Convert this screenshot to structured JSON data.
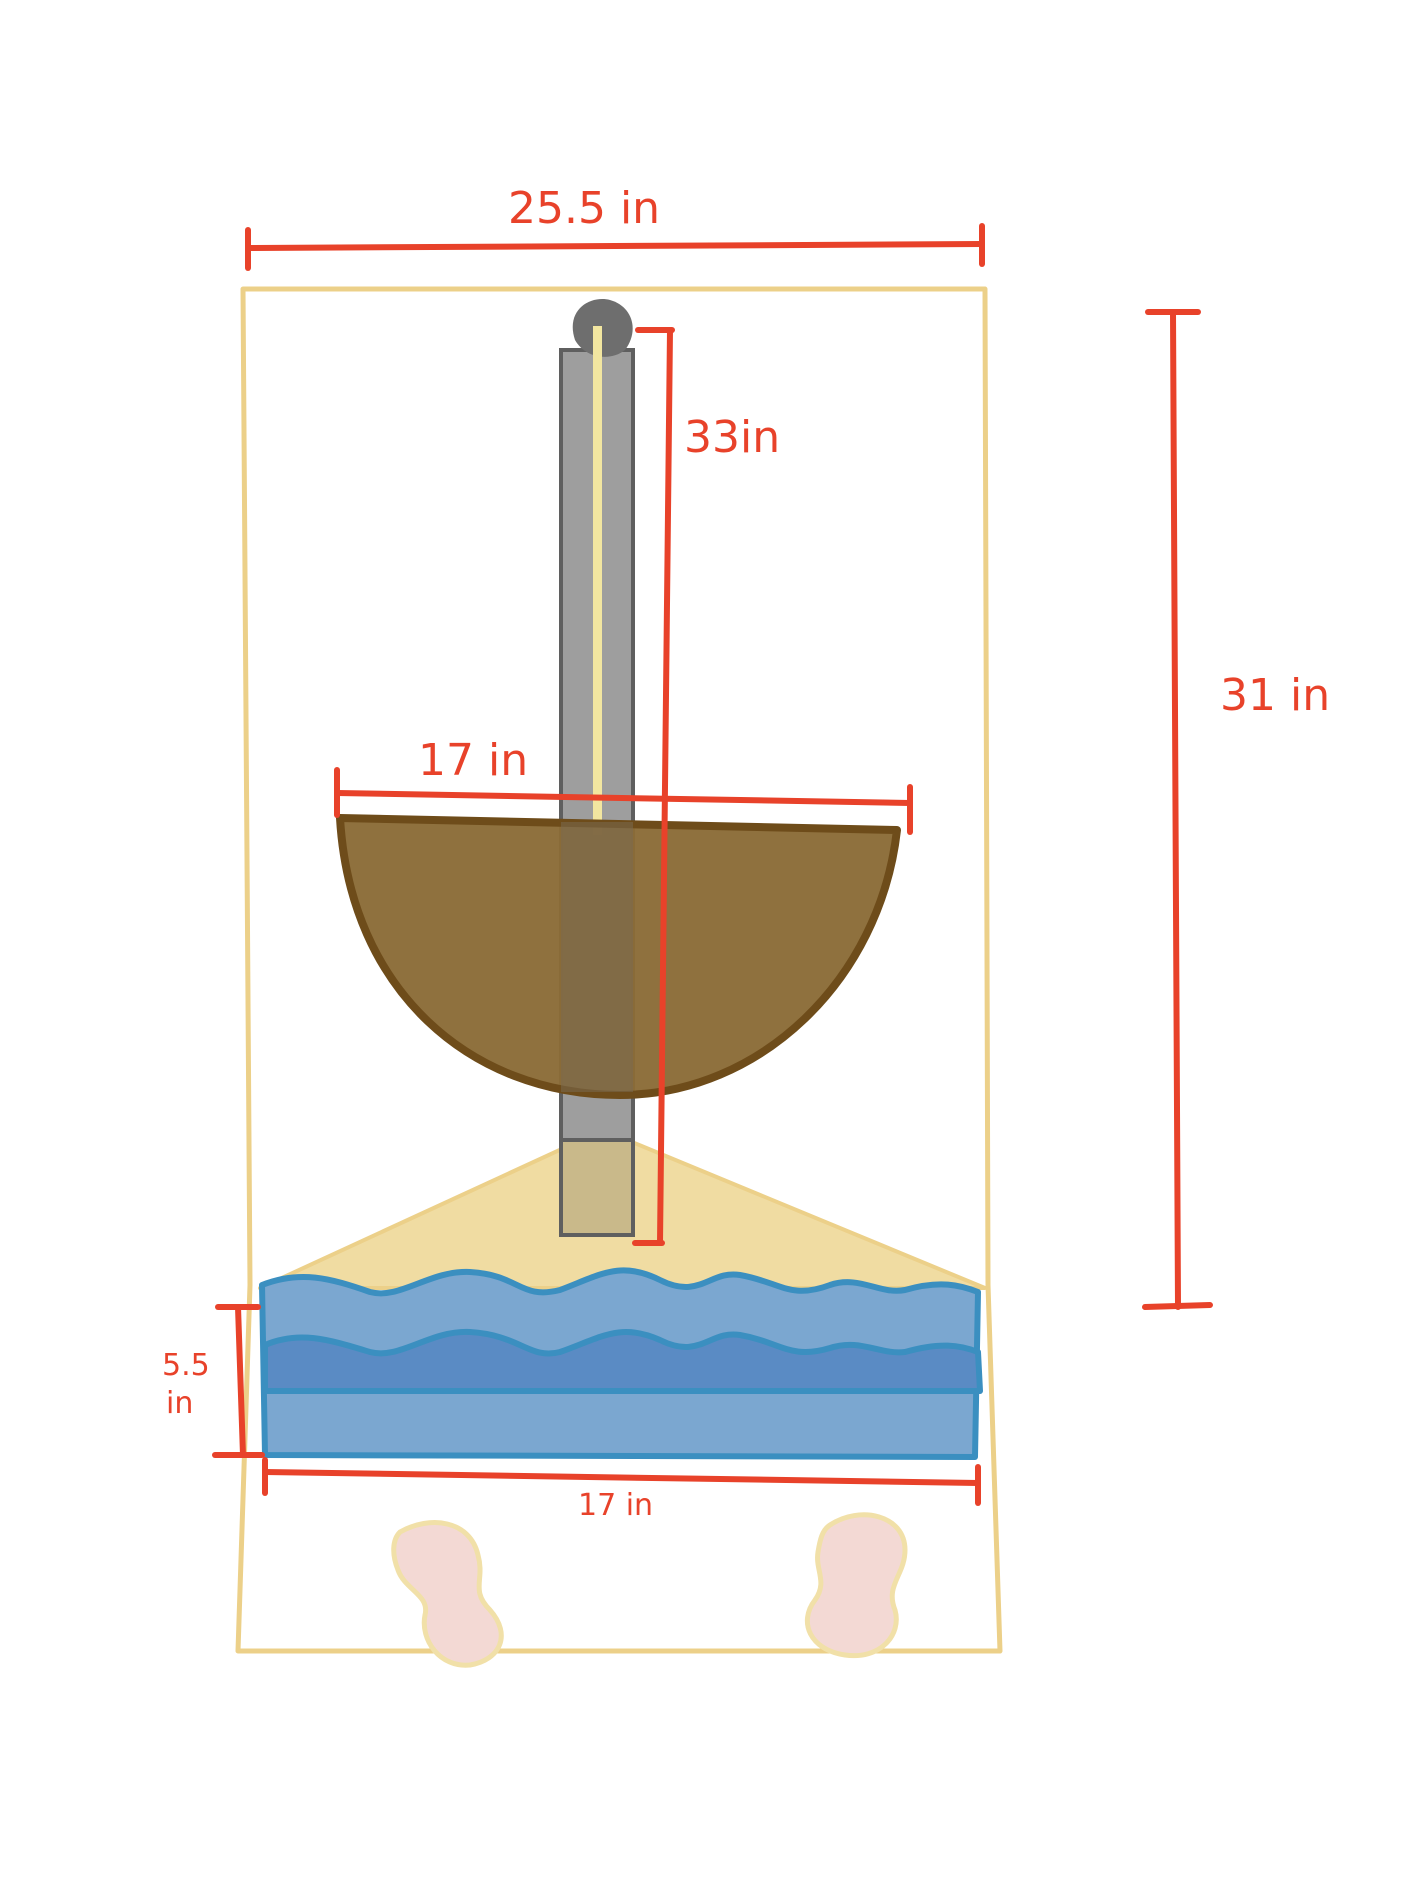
{
  "colors": {
    "measure": "#e8422a",
    "frame": "#ecd089",
    "rod": "#9e9e9e",
    "rod_outline": "#5f5f5f",
    "rod_core": "#f2e6a0",
    "bowl": "#8a6b36",
    "bowl_outline": "#6e4c1a",
    "cone": "#f0dca2",
    "water": "#7ba7d0",
    "water_dark": "#5a8bc4",
    "water_outline": "#3b8fc0",
    "feet": "#e8cfcf",
    "background": "#ffffff"
  },
  "labels": {
    "top_width": "25.5 in",
    "rod_length": "33in",
    "total_height": "31 in",
    "bowl_width": "17 in",
    "water_height_1": "5.5",
    "water_height_2": "in",
    "water_width": "17 in"
  }
}
